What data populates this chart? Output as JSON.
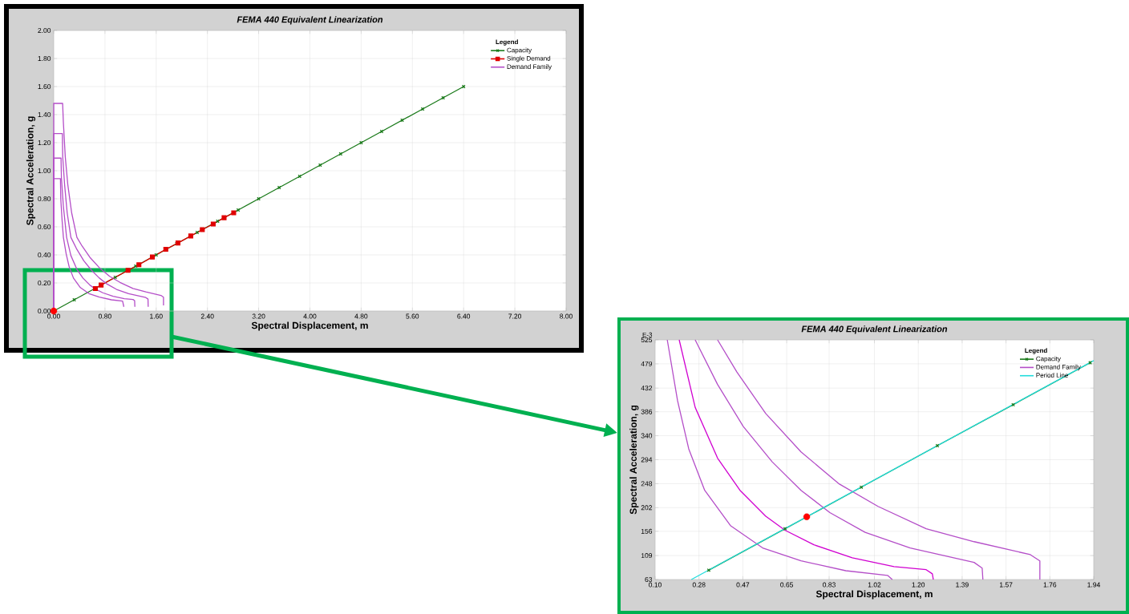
{
  "chart_data": [
    {
      "type": "line",
      "title": "FEMA 440 Equivalent Linearization",
      "xlabel": "Spectral Displacement, m",
      "ylabel": "Spectral Acceleration, g",
      "legend_title": "Legend",
      "legend": "top right",
      "grid": true,
      "xlim": [
        0,
        8
      ],
      "ylim": [
        0,
        2
      ],
      "xticks": [
        {
          "value": 0,
          "label": "0.00"
        },
        {
          "value": 0.8,
          "label": "0.80"
        },
        {
          "value": 1.6,
          "label": "1.60"
        },
        {
          "value": 2.4,
          "label": "2.40"
        },
        {
          "value": 3.2,
          "label": "3.20"
        },
        {
          "value": 4.0,
          "label": "4.00"
        },
        {
          "value": 4.8,
          "label": "4.80"
        },
        {
          "value": 5.6,
          "label": "5.60"
        },
        {
          "value": 6.4,
          "label": "6.40"
        },
        {
          "value": 7.2,
          "label": "7.20"
        },
        {
          "value": 8.0,
          "label": "8.00"
        }
      ],
      "yticks": [
        {
          "value": 0,
          "label": "0.00"
        },
        {
          "value": 0.2,
          "label": "0.20"
        },
        {
          "value": 0.4,
          "label": "0.40"
        },
        {
          "value": 0.6,
          "label": "0.60"
        },
        {
          "value": 0.8,
          "label": "0.80"
        },
        {
          "value": 1.0,
          "label": "1.00"
        },
        {
          "value": 1.2,
          "label": "1.20"
        },
        {
          "value": 1.4,
          "label": "1.40"
        },
        {
          "value": 1.6,
          "label": "1.60"
        },
        {
          "value": 1.8,
          "label": "1.80"
        },
        {
          "value": 2.0,
          "label": "2.00"
        }
      ],
      "series": [
        {
          "name": "Capacity",
          "color": "#1a7a1a",
          "marker": "cross",
          "x": [
            0,
            0.32,
            0.64,
            0.96,
            1.28,
            1.6,
            1.92,
            2.24,
            2.56,
            2.88,
            3.2,
            3.52,
            3.84,
            4.16,
            4.48,
            4.8,
            5.12,
            5.44,
            5.76,
            6.08,
            6.4
          ],
          "values": [
            0,
            0.08,
            0.16,
            0.24,
            0.32,
            0.4,
            0.48,
            0.56,
            0.64,
            0.72,
            0.8,
            0.88,
            0.96,
            1.04,
            1.12,
            1.2,
            1.28,
            1.36,
            1.44,
            1.52,
            1.6
          ]
        },
        {
          "name": "Single Demand",
          "color": "#e00000",
          "marker": "square",
          "x": [
            0.65,
            0.74,
            1.16,
            1.33,
            1.54,
            1.75,
            1.94,
            2.14,
            2.32,
            2.49,
            2.66,
            2.81
          ],
          "values": [
            0.16,
            0.185,
            0.29,
            0.33,
            0.385,
            0.44,
            0.485,
            0.535,
            0.58,
            0.62,
            0.665,
            0.7
          ]
        },
        {
          "name": "Demand Family",
          "color": "#b44ec8",
          "marker": "none",
          "x": [
            0,
            0,
            0.139,
            0.15,
            0.18,
            0.22,
            0.28,
            0.362,
            0.443,
            0.564,
            0.712,
            0.873,
            1.035,
            1.237,
            1.438,
            1.674,
            1.714,
            1.714
          ],
          "values": [
            0,
            1.48,
            1.48,
            1.35,
            1.1,
            0.9,
            0.7,
            0.525,
            0.463,
            0.383,
            0.309,
            0.247,
            0.204,
            0.161,
            0.136,
            0.111,
            0.099,
            0.04
          ]
        },
        {
          "color": "#b44ec8",
          "marker": "none",
          "x": [
            0,
            0,
            0.135,
            0.14,
            0.17,
            0.21,
            0.268,
            0.362,
            0.47,
            0.591,
            0.712,
            0.833,
            0.981,
            1.17,
            1.438,
            1.472,
            1.475
          ],
          "values": [
            0,
            1.265,
            1.265,
            1.1,
            0.9,
            0.7,
            0.525,
            0.439,
            0.358,
            0.29,
            0.235,
            0.192,
            0.154,
            0.124,
            0.096,
            0.085,
            0.03
          ]
        },
        {
          "color": "#b44ec8",
          "marker": "none",
          "x": [
            0,
            0,
            0.114,
            0.12,
            0.15,
            0.201,
            0.268,
            0.362,
            0.456,
            0.564,
            0.645,
            0.766,
            0.927,
            1.102,
            1.237,
            1.263,
            1.267
          ],
          "values": [
            0,
            1.09,
            1.09,
            0.95,
            0.75,
            0.525,
            0.395,
            0.297,
            0.235,
            0.185,
            0.158,
            0.13,
            0.105,
            0.088,
            0.082,
            0.074,
            0.03
          ]
        },
        {
          "color": "#b44ec8",
          "marker": "none",
          "x": [
            0,
            0,
            0.105,
            0.11,
            0.13,
            0.151,
            0.194,
            0.241,
            0.308,
            0.416,
            0.551,
            0.712,
            0.9,
            1.075,
            1.095
          ],
          "values": [
            0,
            0.944,
            0.944,
            0.8,
            0.65,
            0.525,
            0.408,
            0.315,
            0.235,
            0.167,
            0.124,
            0.099,
            0.08,
            0.071,
            0.03
          ]
        },
        {
          "type": "scatter",
          "color": "#ff0000",
          "marker": "circle",
          "x": [
            0
          ],
          "values": [
            0
          ]
        }
      ]
    },
    {
      "type": "line",
      "title": "FEMA 440 Equivalent Linearization",
      "xlabel": "Spectral Displacement, m",
      "ylabel": "Spectral Acceleration, g",
      "legend_title": "Legend",
      "legend": "top right",
      "grid": true,
      "annotations": [
        "E-3"
      ],
      "xlim": [
        0.1,
        1.94
      ],
      "ylim": [
        63,
        525
      ],
      "xticks": [
        {
          "value": 0.1,
          "label": "0.10"
        },
        {
          "value": 0.284,
          "label": "0.28"
        },
        {
          "value": 0.468,
          "label": "0.47"
        },
        {
          "value": 0.652,
          "label": "0.65"
        },
        {
          "value": 0.83,
          "label": "0.83"
        },
        {
          "value": 1.02,
          "label": "1.02"
        },
        {
          "value": 1.204,
          "label": "1.20"
        },
        {
          "value": 1.388,
          "label": "1.39"
        },
        {
          "value": 1.572,
          "label": "1.57"
        },
        {
          "value": 1.756,
          "label": "1.76"
        },
        {
          "value": 1.94,
          "label": "1.94"
        }
      ],
      "yticks": [
        63,
        {
          "value": 109.2,
          "label": "109"
        },
        156,
        {
          "value": 201.6,
          "label": "202"
        },
        {
          "value": 247.8,
          "label": "248"
        },
        294,
        {
          "value": 340.2,
          "label": "340"
        },
        {
          "value": 386.4,
          "label": "386"
        },
        432,
        {
          "value": 478.8,
          "label": "479"
        },
        525
      ],
      "series": [
        {
          "name": "Capacity",
          "color": "#1a7a1a",
          "marker": "cross",
          "x": [
            0.325,
            0.645,
            0.965,
            1.284,
            1.602,
            1.925
          ],
          "values": [
            81,
            161,
            241,
            321,
            400,
            481
          ]
        },
        {
          "name": "Demand Family",
          "color": "#b44ec8",
          "marker": "none",
          "x": [
            0.362,
            0.443,
            0.564,
            0.712,
            0.873,
            1.035,
            1.237,
            1.438,
            1.674,
            1.714,
            1.714
          ],
          "values": [
            525,
            463,
            383,
            309,
            247,
            204,
            161,
            136,
            111,
            99,
            63
          ]
        },
        {
          "color": "#b44ec8",
          "marker": "none",
          "x": [
            0.268,
            0.362,
            0.47,
            0.591,
            0.712,
            0.833,
            0.981,
            1.17,
            1.438,
            1.472,
            1.475
          ],
          "values": [
            525,
            439,
            358,
            290,
            235,
            192,
            154,
            124,
            96,
            85,
            63
          ]
        },
        {
          "color": "#d000d0",
          "marker": "none",
          "x": [
            0.201,
            0.268,
            0.362,
            0.456,
            0.564,
            0.645,
            0.766,
            0.927,
            1.102,
            1.237,
            1.263,
            1.267
          ],
          "values": [
            525,
            395,
            297,
            235,
            185,
            158,
            130,
            105,
            88,
            82,
            74,
            63
          ]
        },
        {
          "color": "#b44ec8",
          "marker": "none",
          "x": [
            0.151,
            0.194,
            0.241,
            0.308,
            0.416,
            0.551,
            0.712,
            0.9,
            1.075,
            1.095
          ],
          "values": [
            525,
            408,
            315,
            235,
            167,
            124,
            99,
            80,
            71,
            63
          ]
        },
        {
          "name": "Period Line",
          "color": "#22dddd",
          "marker": "none",
          "x": [
            0.252,
            1.94
          ],
          "values": [
            63,
            485
          ]
        },
        {
          "type": "scatter",
          "color": "#ff0000",
          "marker": "circle",
          "x": [
            0.736
          ],
          "values": [
            184
          ]
        }
      ]
    }
  ]
}
